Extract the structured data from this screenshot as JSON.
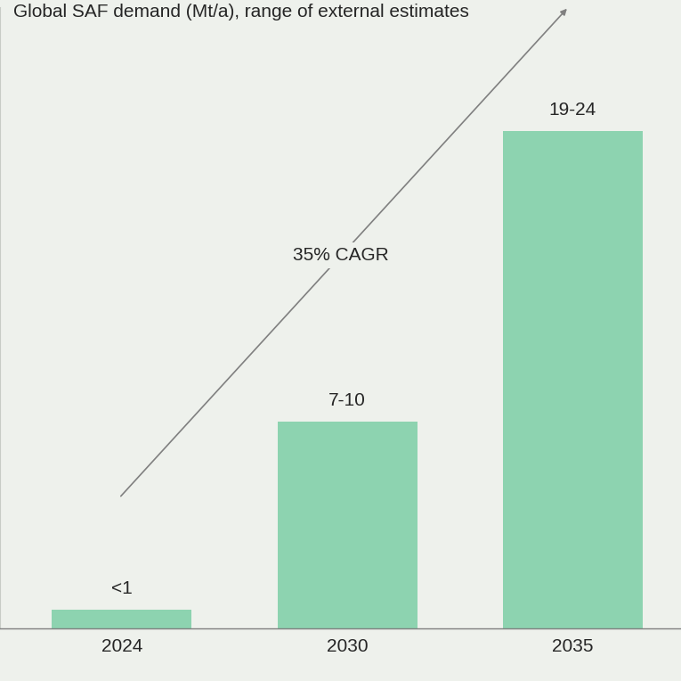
{
  "chart_data": {
    "type": "bar",
    "title": "Global SAF demand (Mt/a), range of external estimates",
    "categories": [
      "2024",
      "2030",
      "2035"
    ],
    "values": [
      0.9,
      10,
      24
    ],
    "value_labels": [
      "<1",
      "7-10",
      "19-24"
    ],
    "data_labels": true,
    "color": "#8dd3b0",
    "ylim": [
      0,
      30
    ],
    "yticks": [],
    "tick_labels": "x",
    "grid": false,
    "annotation": "35% CAGR"
  }
}
